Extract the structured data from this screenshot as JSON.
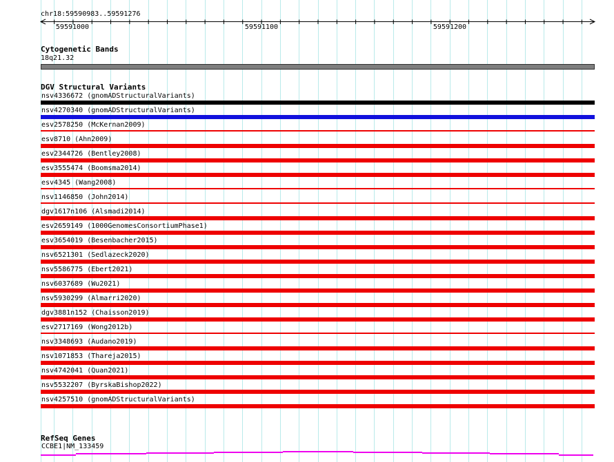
{
  "ruler": {
    "region_label": "chr18:59590983..59591276",
    "chrom": "chr18",
    "region_start": 59590983,
    "region_end": 59591276,
    "ticks": [
      59591000,
      59591100,
      59591200
    ]
  },
  "cytogenetic": {
    "header": "Cytogenetic Bands",
    "band_label": "18q21.32"
  },
  "dgv": {
    "header": "DGV Structural Variants",
    "rows": [
      {
        "id": "nsv4336672",
        "study": "gnomADStructuralVariants",
        "label": "nsv4336672 (gnomADStructuralVariants)",
        "color": "black",
        "style": "thick"
      },
      {
        "id": "nsv4270340",
        "study": "gnomADStructuralVariants",
        "label": "nsv4270340 (gnomADStructuralVariants)",
        "color": "blue",
        "style": "thick"
      },
      {
        "id": "esv2578250",
        "study": "McKernan2009",
        "label": "esv2578250 (McKernan2009)",
        "color": "red",
        "style": "thin"
      },
      {
        "id": "esv8710",
        "study": "Ahn2009",
        "label": "esv8710 (Ahn2009)",
        "color": "red",
        "style": "thick"
      },
      {
        "id": "esv2344726",
        "study": "Bentley2008",
        "label": "esv2344726 (Bentley2008)",
        "color": "red",
        "style": "thick"
      },
      {
        "id": "esv3555474",
        "study": "Boomsma2014",
        "label": "esv3555474 (Boomsma2014)",
        "color": "red",
        "style": "thick"
      },
      {
        "id": "esv4345",
        "study": "Wang2008",
        "label": "esv4345 (Wang2008)",
        "color": "red",
        "style": "thin"
      },
      {
        "id": "nsv1146850",
        "study": "John2014",
        "label": "nsv1146850 (John2014)",
        "color": "red",
        "style": "thin"
      },
      {
        "id": "dgv1617n106",
        "study": "Alsmadi2014",
        "label": "dgv1617n106 (Alsmadi2014)",
        "color": "red",
        "style": "thick"
      },
      {
        "id": "esv2659149",
        "study": "1000GenomesConsortiumPhase1",
        "label": "esv2659149 (1000GenomesConsortiumPhase1)",
        "color": "red",
        "style": "thick"
      },
      {
        "id": "esv3654019",
        "study": "Besenbacher2015",
        "label": "esv3654019 (Besenbacher2015)",
        "color": "red",
        "style": "thick"
      },
      {
        "id": "nsv6521301",
        "study": "Sedlazeck2020",
        "label": "nsv6521301 (Sedlazeck2020)",
        "color": "red",
        "style": "thick"
      },
      {
        "id": "nsv5586775",
        "study": "Ebert2021",
        "label": "nsv5586775 (Ebert2021)",
        "color": "red",
        "style": "thick"
      },
      {
        "id": "nsv6037689",
        "study": "Wu2021",
        "label": "nsv6037689 (Wu2021)",
        "color": "red",
        "style": "thick"
      },
      {
        "id": "nsv5930299",
        "study": "Almarri2020",
        "label": "nsv5930299 (Almarri2020)",
        "color": "red",
        "style": "thick"
      },
      {
        "id": "dgv3881n152",
        "study": "Chaisson2019",
        "label": "dgv3881n152 (Chaisson2019)",
        "color": "red",
        "style": "thick"
      },
      {
        "id": "esv2717169",
        "study": "Wong2012b",
        "label": "esv2717169 (Wong2012b)",
        "color": "red",
        "style": "thin"
      },
      {
        "id": "nsv3348693",
        "study": "Audano2019",
        "label": "nsv3348693 (Audano2019)",
        "color": "red",
        "style": "thick"
      },
      {
        "id": "nsv1071853",
        "study": "Thareja2015",
        "label": "nsv1071853 (Thareja2015)",
        "color": "red",
        "style": "thick"
      },
      {
        "id": "nsv4742041",
        "study": "Quan2021",
        "label": "nsv4742041 (Quan2021)",
        "color": "red",
        "style": "thick"
      },
      {
        "id": "nsv5532207",
        "study": "ByrskaBishop2022",
        "label": "nsv5532207 (ByrskaBishop2022)",
        "color": "red",
        "style": "thick"
      },
      {
        "id": "nsv4257510",
        "study": "gnomADStructuralVariants",
        "label": "nsv4257510 (gnomADStructuralVariants)",
        "color": "red",
        "style": "thick"
      }
    ]
  },
  "refseq": {
    "header": "RefSeq Genes",
    "gene_label": "CCBE1|NM_133459"
  },
  "colors": {
    "grid": "#b9eaea",
    "axis": "#000000",
    "band_fill": "#7e7e7e",
    "band_border": "#2f2f2f",
    "black": "#000000",
    "blue": "#1111dd",
    "red": "#ee0000",
    "gene": "#ee00ee"
  }
}
